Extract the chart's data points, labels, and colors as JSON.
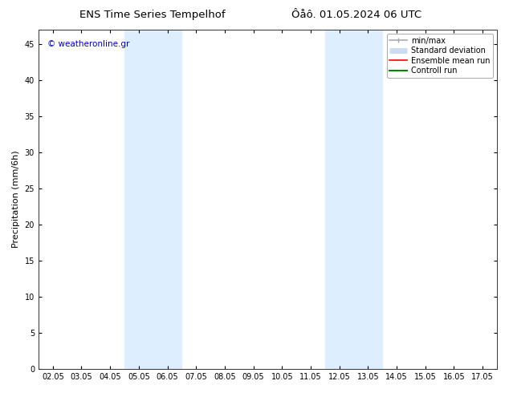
{
  "title_left": "ENS Time Series Tempelhof",
  "title_right": "Ôåô. 01.05.2024 06 UTC",
  "ylabel": "Precipitation (mm/6h)",
  "watermark": "© weatheronline.gr",
  "watermark_color": "#0000cc",
  "background_color": "#ffffff",
  "plot_bg_color": "#ffffff",
  "ylim": [
    0,
    47
  ],
  "yticks": [
    0,
    5,
    10,
    15,
    20,
    25,
    30,
    35,
    40,
    45
  ],
  "x_labels": [
    "02.05",
    "03.05",
    "04.05",
    "05.05",
    "06.05",
    "07.05",
    "08.05",
    "09.05",
    "10.05",
    "11.05",
    "12.05",
    "13.05",
    "14.05",
    "15.05",
    "16.05",
    "17.05"
  ],
  "shaded_regions": [
    {
      "xstart": 2,
      "xend": 4,
      "color": "#ddeeff"
    },
    {
      "xstart": 9,
      "xend": 11,
      "color": "#ddeeff"
    }
  ],
  "legend_entries": [
    {
      "label": "min/max",
      "color": "#aaaaaa",
      "lw": 1.2
    },
    {
      "label": "Standard deviation",
      "color": "#ccddf0",
      "lw": 5
    },
    {
      "label": "Ensemble mean run",
      "color": "#ff0000",
      "lw": 1.2
    },
    {
      "label": "Controll run",
      "color": "#008800",
      "lw": 1.5
    }
  ],
  "title_fontsize": 9.5,
  "tick_fontsize": 7,
  "ylabel_fontsize": 8,
  "watermark_fontsize": 7.5,
  "legend_fontsize": 7
}
